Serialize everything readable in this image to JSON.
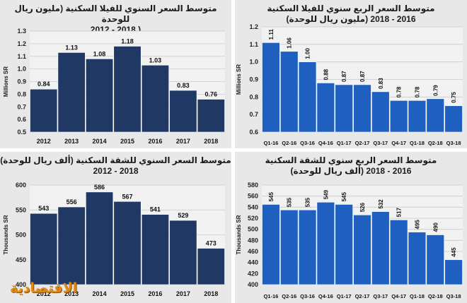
{
  "chart_data": [
    {
      "id": "villa_annual",
      "type": "bar",
      "title": "متوسط السعر السنوي للفيلا السكنية (مليون ريال للوحدة",
      "subtitle": "2012 - 2018 )",
      "ylabel": "Millions SR",
      "xlabel": "",
      "categories": [
        "2012",
        "2013",
        "2014",
        "2015",
        "2016",
        "2017",
        "2018"
      ],
      "values": [
        0.84,
        1.13,
        1.08,
        1.18,
        1.03,
        0.83,
        0.76
      ],
      "value_labels": [
        "0.84",
        "1.13",
        "1.08",
        "1.18",
        "1.03",
        "0.83",
        "0.76"
      ],
      "ylim": [
        0.5,
        1.3
      ],
      "yticks": [
        "0.5",
        "0.6",
        "0.7",
        "0.8",
        "0.9",
        "1.0",
        "1.1",
        "1.2",
        "1.3"
      ],
      "ytick_values": [
        0.5,
        0.6,
        0.7,
        0.8,
        0.9,
        1.0,
        1.1,
        1.2,
        1.3
      ],
      "bar_color": "#1f3864",
      "grid": true,
      "label_rotation": 0
    },
    {
      "id": "villa_quarterly",
      "type": "bar",
      "title": "متوسط السعر الربع سنوي للفيلا السكنية",
      "subtitle": "(مليون ريال للوحدة) 2016 - 2018",
      "ylabel": "Millions SR",
      "xlabel": "",
      "categories": [
        "Q1-16",
        "Q2-16",
        "Q3-16",
        "Q4-16",
        "Q1-17",
        "Q2-17",
        "Q3-17",
        "Q4-17",
        "Q1-18",
        "Q2-18",
        "Q3-18"
      ],
      "values": [
        1.11,
        1.06,
        1.0,
        0.88,
        0.87,
        0.87,
        0.83,
        0.78,
        0.78,
        0.79,
        0.75
      ],
      "value_labels": [
        "1.11",
        "1.06",
        "1.00",
        "0.88",
        "0.87",
        "0.87",
        "0.83",
        "0.78",
        "0.78",
        "0.79",
        "0.75"
      ],
      "ylim": [
        0.6,
        1.2
      ],
      "yticks": [
        "0.6",
        "0.7",
        "0.8",
        "0.9",
        "1.0",
        "1.1",
        "1.2"
      ],
      "ytick_values": [
        0.6,
        0.7,
        0.8,
        0.9,
        1.0,
        1.1,
        1.2
      ],
      "bar_color": "#1f5fbf",
      "grid": true,
      "label_rotation": -90
    },
    {
      "id": "apartment_annual",
      "type": "bar",
      "title": "متوسط السعر السنوي للشقة السكنية (ألف ريال للوحدة)",
      "subtitle": "2012 - 2018",
      "ylabel": "Thousands SR",
      "xlabel": "",
      "categories": [
        "2012",
        "2013",
        "2014",
        "2015",
        "2016",
        "2017",
        "2018"
      ],
      "values": [
        543,
        556,
        586,
        567,
        541,
        529,
        473
      ],
      "value_labels": [
        "543",
        "556",
        "586",
        "567",
        "541",
        "529",
        "473"
      ],
      "ylim": [
        400,
        600
      ],
      "yticks": [
        "400",
        "450",
        "500",
        "550",
        "600"
      ],
      "ytick_values": [
        400,
        450,
        500,
        550,
        600
      ],
      "bar_color": "#1f3864",
      "grid": true,
      "label_rotation": 0
    },
    {
      "id": "apartment_quarterly",
      "type": "bar",
      "title": "متوسط السعر الربع سنوي للشقة السكنية",
      "subtitle": "(ألف ريال للوحدة) 2016 - 2018",
      "ylabel": "Thousands SR",
      "xlabel": "",
      "categories": [
        "Q1-16",
        "Q2-16",
        "Q3-16",
        "Q4-16",
        "Q1-17",
        "Q2-17",
        "Q3-17",
        "Q4-17",
        "Q1-18",
        "Q2-18",
        "Q3-18"
      ],
      "values": [
        545,
        535,
        535,
        549,
        545,
        526,
        532,
        517,
        495,
        490,
        445
      ],
      "value_labels": [
        "545",
        "535",
        "535",
        "549",
        "545",
        "526",
        "532",
        "517",
        "495",
        "490",
        "445"
      ],
      "ylim": [
        400,
        580
      ],
      "yticks": [
        "400",
        "420",
        "440",
        "460",
        "480",
        "500",
        "520",
        "540",
        "560",
        "580"
      ],
      "ytick_values": [
        400,
        420,
        440,
        460,
        480,
        500,
        520,
        540,
        560,
        580
      ],
      "bar_color": "#1f5fbf",
      "grid": true,
      "label_rotation": -90
    }
  ],
  "logo": {
    "text": "الاقتصادية",
    "color": "#e08a16"
  }
}
